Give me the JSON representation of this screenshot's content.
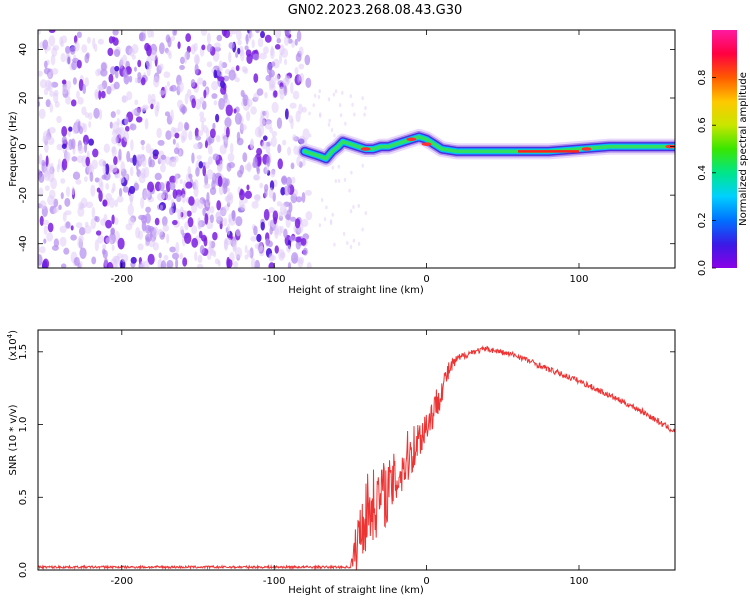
{
  "title": "GN02.2023.268.08.43.G30",
  "colors": {
    "snr_line": "#ee3333",
    "colorbar": [
      "#8a00e6",
      "#3a1ae6",
      "#0070ff",
      "#00d0ff",
      "#00e68a",
      "#3ae600",
      "#c8e600",
      "#ffc800",
      "#ff5a00",
      "#ff0040",
      "#ff1aa0"
    ]
  },
  "chart_data": [
    {
      "type": "heatmap",
      "xlabel": "Height of straight line (km)",
      "ylabel": "Frequency (Hz)",
      "xlim": [
        -255,
        163
      ],
      "ylim": [
        -50,
        48
      ],
      "xticks": [
        "-200",
        "-100",
        "0",
        "100"
      ],
      "yticks": [
        "-40",
        "-20",
        "0",
        "20",
        "40"
      ],
      "grid": false,
      "colorbar": {
        "label": "Normalized spectral amplitude",
        "ticks": [
          "0.0",
          "0.2",
          "0.4",
          "0.6",
          "0.8"
        ],
        "range": [
          0,
          1
        ]
      },
      "noise_region_x": [
        -255,
        -77
      ],
      "ridge": {
        "x": [
          -80,
          -75,
          -70,
          -66,
          -62,
          -58,
          -55,
          -50,
          -45,
          -40,
          -35,
          -30,
          -25,
          -20,
          -15,
          -10,
          -5,
          0,
          5,
          10,
          20,
          40,
          60,
          80,
          100,
          120,
          140,
          163
        ],
        "freq": [
          -2,
          -3,
          -4,
          -5,
          -2,
          0,
          2,
          1,
          0,
          -1,
          -1,
          0,
          0,
          1,
          2,
          3,
          4,
          3,
          1,
          -1,
          -2,
          -2,
          -2,
          -2,
          -1,
          0,
          0,
          0
        ]
      }
    },
    {
      "type": "line",
      "xlabel": "Height of straight line (km)",
      "ylabel": "SNR (10 * v/v)",
      "exponent_label": "(x10",
      "exponent_power": "4",
      "exponent_close": ")",
      "xlim": [
        -255,
        163
      ],
      "ylim": [
        0,
        1.65
      ],
      "xticks": [
        "-200",
        "-100",
        "0",
        "100"
      ],
      "yticks": [
        "0.0",
        "0.5",
        "1.0",
        "1.5"
      ],
      "grid": false,
      "series": [
        {
          "x": [
            -255,
            -50,
            -47,
            -44,
            -40,
            -35,
            -30,
            -25,
            -20,
            -15,
            -10,
            -5,
            0,
            5,
            10,
            15,
            20,
            30,
            40,
            60,
            80,
            100,
            120,
            140,
            163
          ],
          "y": [
            0.02,
            0.02,
            0.12,
            0.25,
            0.4,
            0.45,
            0.5,
            0.55,
            0.62,
            0.72,
            0.82,
            0.9,
            1.0,
            1.1,
            1.25,
            1.38,
            1.45,
            1.5,
            1.52,
            1.47,
            1.38,
            1.3,
            1.2,
            1.1,
            0.95
          ],
          "noise": [
            0.008,
            0.008,
            0.15,
            0.25,
            0.28,
            0.25,
            0.25,
            0.22,
            0.2,
            0.2,
            0.18,
            0.15,
            0.13,
            0.12,
            0.1,
            0.06,
            0.03,
            0.02,
            0.02,
            0.02,
            0.02,
            0.02,
            0.02,
            0.02,
            0.02
          ]
        }
      ]
    }
  ]
}
